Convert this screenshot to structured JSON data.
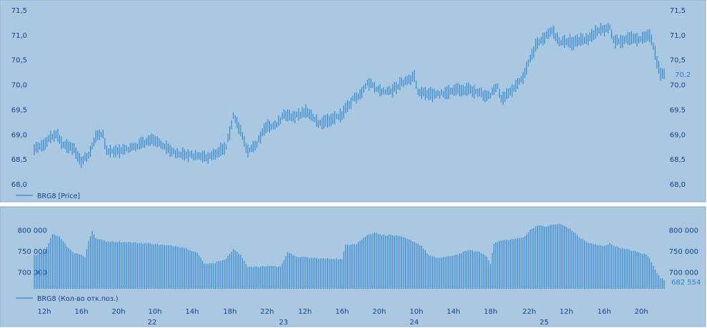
{
  "colors": {
    "panel_bg": "#aac8e2",
    "border": "#8aaed0",
    "bar": "#2b84cc",
    "axis_text": "#1a3f8c",
    "last_value": "#2b84cc",
    "separator": "#ffffff"
  },
  "price_panel": {
    "legend": "BRG8 [Price]",
    "last_value_label": "70,2",
    "y_ticks": [
      "71,5",
      "71,0",
      "70,5",
      "70,0",
      "69,5",
      "69,0",
      "68,5",
      "68,0"
    ]
  },
  "volume_panel": {
    "legend": "BRG8 (Кол-во отк.поз.)",
    "last_value_label": "682 554",
    "y_ticks": [
      "800 000",
      "750 000",
      "700 000"
    ]
  },
  "x_axis": {
    "hour_labels": [
      "12h",
      "16h",
      "20h",
      "10h",
      "14h",
      "18h",
      "22h",
      "12h",
      "16h",
      "20h",
      "10h",
      "14h",
      "18h",
      "22h",
      "12h",
      "16h",
      "20h"
    ],
    "day_labels": [
      "22",
      "23",
      "24",
      "25"
    ]
  },
  "chart_data": [
    {
      "type": "bar",
      "title": "",
      "legend": "BRG8 [Price]",
      "bar_style": "high-low range bars",
      "x_unit": "bar index (chronological, 28 Feb 22–25 trading session bars)",
      "ylim": [
        68.0,
        71.5
      ],
      "y_ticks": [
        68.0,
        68.5,
        69.0,
        69.5,
        70.0,
        70.5,
        71.0,
        71.5
      ],
      "last_value": 70.2,
      "grid": false,
      "series": [
        {
          "name": "BRG8",
          "anchors": [
            [
              0,
              68.7
            ],
            [
              4,
              68.75
            ],
            [
              8,
              68.9
            ],
            [
              12,
              69.0
            ],
            [
              16,
              68.8
            ],
            [
              22,
              68.7
            ],
            [
              26,
              68.45
            ],
            [
              30,
              68.6
            ],
            [
              34,
              68.95
            ],
            [
              38,
              69.0
            ],
            [
              40,
              68.65
            ],
            [
              46,
              68.65
            ],
            [
              52,
              68.7
            ],
            [
              56,
              68.75
            ],
            [
              62,
              68.85
            ],
            [
              66,
              68.9
            ],
            [
              70,
              68.8
            ],
            [
              76,
              68.65
            ],
            [
              82,
              68.6
            ],
            [
              90,
              68.55
            ],
            [
              96,
              68.55
            ],
            [
              100,
              68.6
            ],
            [
              106,
              68.75
            ],
            [
              110,
              69.35
            ],
            [
              114,
              69.05
            ],
            [
              118,
              68.65
            ],
            [
              122,
              68.75
            ],
            [
              128,
              69.15
            ],
            [
              134,
              69.2
            ],
            [
              138,
              69.4
            ],
            [
              144,
              69.35
            ],
            [
              150,
              69.45
            ],
            [
              154,
              69.35
            ],
            [
              158,
              69.2
            ],
            [
              164,
              69.3
            ],
            [
              170,
              69.4
            ],
            [
              176,
              69.7
            ],
            [
              180,
              69.8
            ],
            [
              184,
              70.05
            ],
            [
              188,
              69.95
            ],
            [
              192,
              69.85
            ],
            [
              198,
              69.9
            ],
            [
              204,
              70.05
            ],
            [
              210,
              70.15
            ],
            [
              212,
              69.85
            ],
            [
              218,
              69.8
            ],
            [
              222,
              69.8
            ],
            [
              228,
              69.85
            ],
            [
              234,
              69.9
            ],
            [
              240,
              69.9
            ],
            [
              246,
              69.85
            ],
            [
              248,
              69.8
            ],
            [
              252,
              69.8
            ],
            [
              256,
              69.95
            ],
            [
              258,
              69.7
            ],
            [
              262,
              69.85
            ],
            [
              266,
              69.95
            ],
            [
              270,
              70.15
            ],
            [
              274,
              70.5
            ],
            [
              278,
              70.85
            ],
            [
              282,
              70.95
            ],
            [
              286,
              71.1
            ],
            [
              290,
              70.85
            ],
            [
              294,
              70.85
            ],
            [
              298,
              70.85
            ],
            [
              302,
              70.9
            ],
            [
              306,
              70.9
            ],
            [
              310,
              71.05
            ],
            [
              314,
              71.1
            ],
            [
              318,
              71.15
            ],
            [
              320,
              70.9
            ],
            [
              324,
              70.85
            ],
            [
              328,
              70.95
            ],
            [
              332,
              70.9
            ],
            [
              336,
              70.95
            ],
            [
              340,
              71.0
            ],
            [
              342,
              70.8
            ],
            [
              344,
              70.45
            ],
            [
              346,
              70.2
            ],
            [
              348,
              70.2
            ]
          ]
        }
      ]
    },
    {
      "type": "bar",
      "title": "",
      "legend": "BRG8 (Кол-во отк.поз.)",
      "x_unit": "bar index (same bars as price panel)",
      "ylim": [
        660000,
        830000
      ],
      "y_ticks": [
        700000,
        750000,
        800000
      ],
      "last_value": 682554,
      "grid": false,
      "series": [
        {
          "name": "BRG8",
          "anchors": [
            [
              0,
              740000
            ],
            [
              6,
              750000
            ],
            [
              10,
              790000
            ],
            [
              14,
              785000
            ],
            [
              18,
              762000
            ],
            [
              22,
              745000
            ],
            [
              26,
              742000
            ],
            [
              28,
              735000
            ],
            [
              30,
              775000
            ],
            [
              32,
              798000
            ],
            [
              34,
              780000
            ],
            [
              40,
              773000
            ],
            [
              48,
              772000
            ],
            [
              56,
              770000
            ],
            [
              64,
              768000
            ],
            [
              72,
              764000
            ],
            [
              78,
              762000
            ],
            [
              84,
              757000
            ],
            [
              90,
              746000
            ],
            [
              94,
              720000
            ],
            [
              100,
              722000
            ],
            [
              106,
              732000
            ],
            [
              110,
              755000
            ],
            [
              114,
              740000
            ],
            [
              118,
              713000
            ],
            [
              124,
              712000
            ],
            [
              130,
              715000
            ],
            [
              136,
              712000
            ],
            [
              140,
              748000
            ],
            [
              144,
              737000
            ],
            [
              150,
              735000
            ],
            [
              158,
              732000
            ],
            [
              166,
              732000
            ],
            [
              170,
              730000
            ],
            [
              172,
              765000
            ],
            [
              178,
              768000
            ],
            [
              184,
              788000
            ],
            [
              188,
              795000
            ],
            [
              192,
              788000
            ],
            [
              198,
              788000
            ],
            [
              204,
              782000
            ],
            [
              210,
              772000
            ],
            [
              214,
              762000
            ],
            [
              218,
              740000
            ],
            [
              222,
              733000
            ],
            [
              228,
              736000
            ],
            [
              234,
              742000
            ],
            [
              240,
              752000
            ],
            [
              246,
              748000
            ],
            [
              250,
              738000
            ],
            [
              252,
              720000
            ],
            [
              254,
              768000
            ],
            [
              258,
              775000
            ],
            [
              264,
              778000
            ],
            [
              270,
              782000
            ],
            [
              274,
              800000
            ],
            [
              278,
              812000
            ],
            [
              282,
              808000
            ],
            [
              286,
              812000
            ],
            [
              290,
              815000
            ],
            [
              294,
              808000
            ],
            [
              298,
              796000
            ],
            [
              302,
              780000
            ],
            [
              306,
              770000
            ],
            [
              310,
              765000
            ],
            [
              314,
              762000
            ],
            [
              318,
              768000
            ],
            [
              322,
              760000
            ],
            [
              326,
              755000
            ],
            [
              330,
              752000
            ],
            [
              334,
              746000
            ],
            [
              338,
              742000
            ],
            [
              340,
              732000
            ],
            [
              342,
              716000
            ],
            [
              344,
              698000
            ],
            [
              346,
              686000
            ],
            [
              348,
              682554
            ]
          ]
        }
      ]
    }
  ]
}
